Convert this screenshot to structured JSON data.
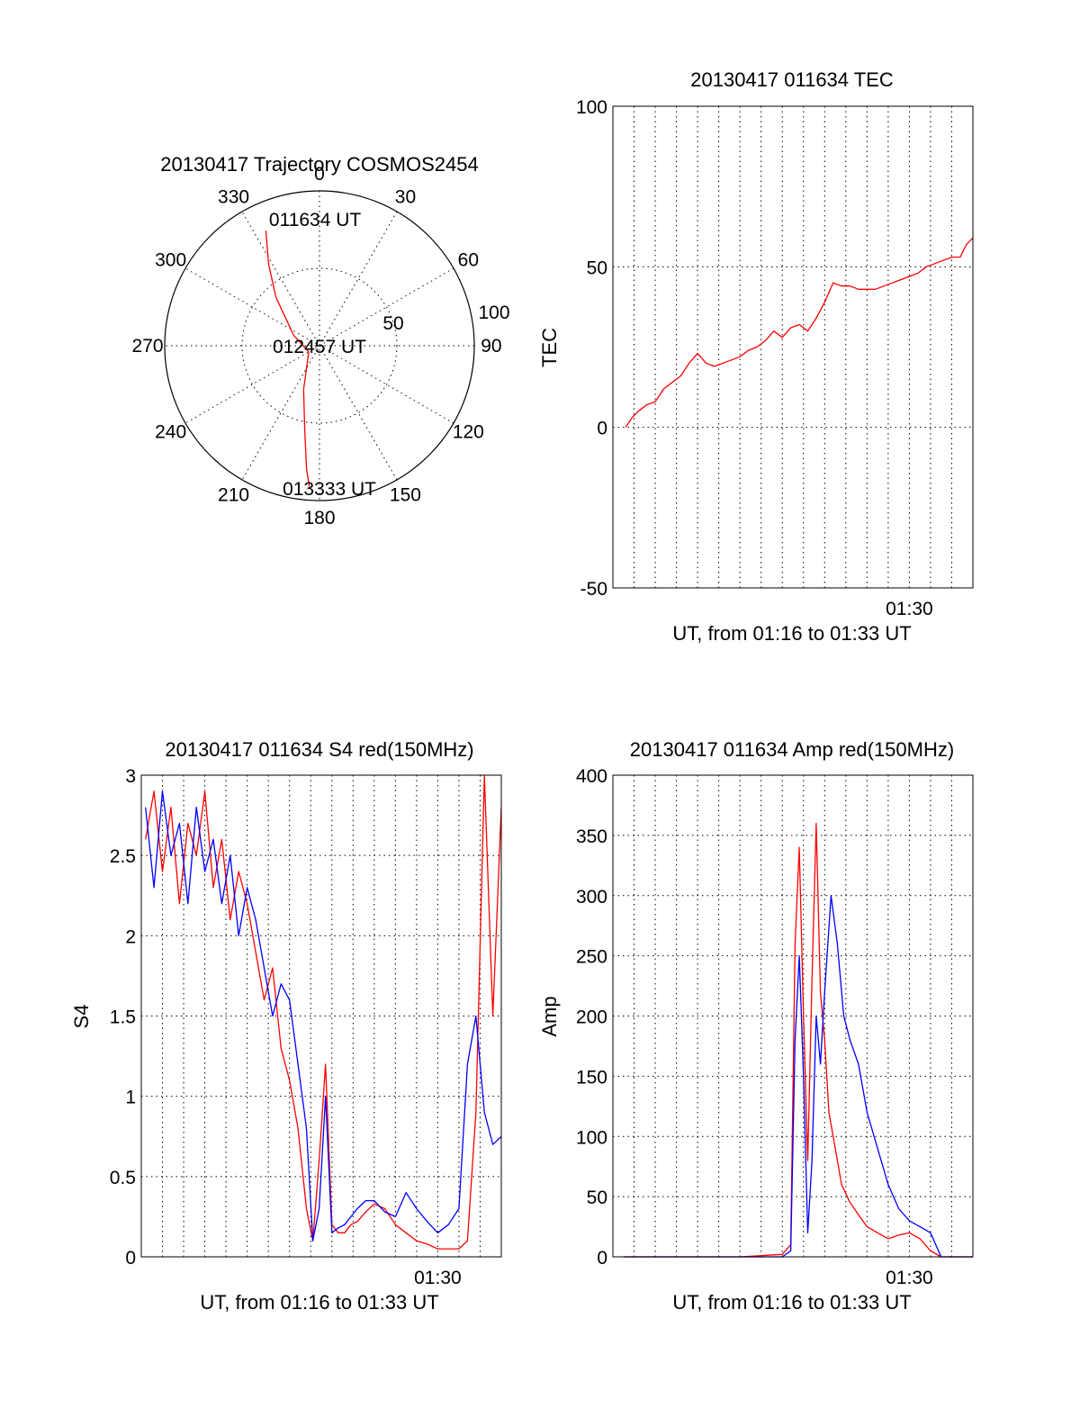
{
  "chart_data": [
    {
      "type": "polar",
      "title": "20130417 Trajectory COSMOS2454",
      "angle_labels": [
        "0",
        "30",
        "60",
        "90",
        "120",
        "150",
        "180",
        "210",
        "240",
        "270",
        "300",
        "330"
      ],
      "radial_labels": [
        "50",
        "100"
      ],
      "rlim": [
        0,
        100
      ],
      "grid": true,
      "series": [
        {
          "color": "#ff0000",
          "points": [
            {
              "az": 335,
              "r": 82
            },
            {
              "az": 328,
              "r": 62
            },
            {
              "az": 318,
              "r": 42
            },
            {
              "az": 292,
              "r": 18
            },
            {
              "az": 240,
              "r": 8
            },
            {
              "az": 200,
              "r": 30
            },
            {
              "az": 190,
              "r": 55
            },
            {
              "az": 186,
              "r": 80
            },
            {
              "az": 184,
              "r": 92
            }
          ]
        }
      ],
      "annotations": [
        {
          "text": "011634 UT",
          "az": 358,
          "r": 82
        },
        {
          "text": "012457 UT",
          "az": 0,
          "r": 0
        },
        {
          "text": "013333 UT",
          "az": 176,
          "r": 92
        }
      ]
    },
    {
      "type": "line",
      "title": "20130417 011634 TEC",
      "xlabel": "UT, from 01:16 to 01:33 UT",
      "ylabel": "TEC",
      "xlim": [
        0,
        17
      ],
      "x_tick_labels": [
        {
          "at": 14,
          "label": "01:30"
        }
      ],
      "ylim": [
        -50,
        100
      ],
      "y_ticks": [
        -50,
        0,
        50,
        100
      ],
      "grid": true,
      "series": [
        {
          "color": "#ff0000",
          "x": [
            0.6,
            0.9,
            1.2,
            1.6,
            2.0,
            2.4,
            2.8,
            3.2,
            3.6,
            4.0,
            4.4,
            4.8,
            5.2,
            5.6,
            6.0,
            6.4,
            6.8,
            7.2,
            7.6,
            8.0,
            8.4,
            8.8,
            9.2,
            9.6,
            10.0,
            10.4,
            10.8,
            11.2,
            11.6,
            12.0,
            12.4,
            12.8,
            13.2,
            13.6,
            14.0,
            14.4,
            14.8,
            15.2,
            15.6,
            16.0,
            16.4,
            16.7,
            17.0
          ],
          "y": [
            0,
            3,
            5,
            7,
            8,
            12,
            14,
            16,
            20,
            23,
            20,
            19,
            20,
            21,
            22,
            24,
            25,
            27,
            30,
            28,
            31,
            32,
            30,
            34,
            39,
            45,
            44,
            44,
            43,
            43,
            43,
            44,
            45,
            46,
            47,
            48,
            50,
            51,
            52,
            53,
            53,
            57,
            59
          ]
        }
      ]
    },
    {
      "type": "line",
      "title": "20130417 011634 S4 red(150MHz)",
      "xlabel": "UT, from 01:16 to 01:33 UT",
      "ylabel": "S4",
      "xlim": [
        0,
        17
      ],
      "x_tick_labels": [
        {
          "at": 14,
          "label": "01:30"
        }
      ],
      "ylim": [
        0,
        3
      ],
      "y_ticks": [
        0,
        0.5,
        1,
        1.5,
        2,
        2.5,
        3
      ],
      "grid": true,
      "series": [
        {
          "color": "#ff0000",
          "x": [
            0.2,
            0.6,
            1.0,
            1.4,
            1.8,
            2.2,
            2.6,
            3.0,
            3.4,
            3.8,
            4.2,
            4.6,
            5.0,
            5.4,
            5.8,
            6.2,
            6.6,
            7.0,
            7.4,
            7.8,
            8.1,
            8.4,
            8.7,
            9.0,
            9.3,
            9.6,
            9.9,
            10.2,
            10.6,
            11.0,
            11.5,
            12.0,
            12.5,
            13.0,
            13.5,
            14.0,
            14.5,
            15.0,
            15.4,
            15.8,
            16.2,
            16.6,
            17.0
          ],
          "y": [
            2.6,
            2.9,
            2.4,
            2.8,
            2.2,
            2.7,
            2.5,
            2.9,
            2.3,
            2.6,
            2.1,
            2.4,
            2.2,
            1.9,
            1.6,
            1.8,
            1.3,
            1.1,
            0.8,
            0.3,
            0.1,
            0.6,
            1.2,
            0.2,
            0.15,
            0.15,
            0.2,
            0.22,
            0.28,
            0.33,
            0.3,
            0.2,
            0.15,
            0.1,
            0.08,
            0.05,
            0.05,
            0.05,
            0.1,
            0.9,
            3.0,
            1.5,
            2.8
          ]
        },
        {
          "color": "#0000ff",
          "x": [
            0.2,
            0.6,
            1.0,
            1.4,
            1.8,
            2.2,
            2.6,
            3.0,
            3.4,
            3.8,
            4.2,
            4.6,
            5.0,
            5.4,
            5.8,
            6.2,
            6.6,
            7.0,
            7.4,
            7.8,
            8.1,
            8.4,
            8.7,
            9.0,
            9.3,
            9.6,
            9.9,
            10.2,
            10.6,
            11.0,
            11.5,
            12.0,
            12.5,
            13.0,
            13.5,
            14.0,
            14.5,
            15.0,
            15.4,
            15.8,
            16.2,
            16.6,
            17.0
          ],
          "y": [
            2.8,
            2.3,
            2.9,
            2.5,
            2.7,
            2.2,
            2.8,
            2.4,
            2.6,
            2.2,
            2.5,
            2.0,
            2.3,
            2.1,
            1.8,
            1.5,
            1.7,
            1.6,
            1.2,
            0.8,
            0.1,
            0.3,
            1.0,
            0.15,
            0.18,
            0.2,
            0.25,
            0.3,
            0.35,
            0.35,
            0.28,
            0.25,
            0.4,
            0.3,
            0.22,
            0.15,
            0.2,
            0.3,
            1.2,
            1.5,
            0.9,
            0.7,
            0.75
          ]
        }
      ]
    },
    {
      "type": "line",
      "title": "20130417 011634 Amp red(150MHz)",
      "xlabel": "UT, from 01:16 to 01:33 UT",
      "ylabel": "Amp",
      "xlim": [
        0,
        17
      ],
      "x_tick_labels": [
        {
          "at": 14,
          "label": "01:30"
        }
      ],
      "ylim": [
        0,
        400
      ],
      "y_ticks": [
        0,
        50,
        100,
        150,
        200,
        250,
        300,
        350,
        400
      ],
      "grid": true,
      "series": [
        {
          "color": "#ff0000",
          "x": [
            0.5,
            3.0,
            6.0,
            8.0,
            8.4,
            8.6,
            8.8,
            9.0,
            9.2,
            9.4,
            9.6,
            9.8,
            10.0,
            10.2,
            10.5,
            10.8,
            11.2,
            11.6,
            12.0,
            12.5,
            13.0,
            13.5,
            14.0,
            14.5,
            15.0,
            15.5,
            16.0,
            17.0
          ],
          "y": [
            0,
            0,
            0,
            2,
            10,
            260,
            340,
            200,
            80,
            230,
            360,
            220,
            180,
            120,
            90,
            60,
            45,
            35,
            25,
            20,
            15,
            18,
            20,
            15,
            5,
            0,
            0,
            0
          ]
        },
        {
          "color": "#0000ff",
          "x": [
            0.5,
            3.0,
            6.0,
            8.0,
            8.4,
            8.6,
            8.8,
            9.0,
            9.2,
            9.4,
            9.6,
            9.8,
            10.0,
            10.3,
            10.6,
            10.9,
            11.2,
            11.6,
            12.0,
            12.5,
            13.0,
            13.5,
            14.0,
            14.5,
            15.0,
            15.5,
            16.0,
            17.0
          ],
          "y": [
            0,
            0,
            0,
            0,
            5,
            180,
            250,
            150,
            20,
            80,
            200,
            160,
            220,
            300,
            260,
            200,
            180,
            160,
            120,
            90,
            60,
            40,
            30,
            25,
            20,
            0,
            0,
            0
          ]
        }
      ]
    }
  ]
}
